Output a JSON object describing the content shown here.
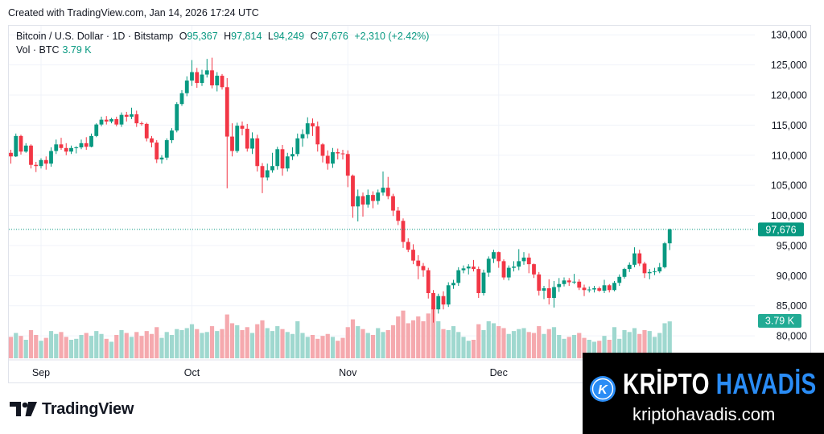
{
  "caption": "Created with TradingView.com, Jan 14, 2026 17:24 UTC",
  "legend": {
    "symbol": "Bitcoin / U.S. Dollar · 1D · Bitstamp",
    "o_label": "O",
    "o_value": "95,367",
    "h_label": "H",
    "h_value": "97,814",
    "l_label": "L",
    "l_value": "94,249",
    "c_label": "C",
    "c_value": "97,676",
    "change": "+2,310 (+2.42%)",
    "vol_label": "Vol · BTC",
    "vol_value": "3.79 K"
  },
  "brand": {
    "logo_text": "TradingView"
  },
  "watermark": {
    "title_part1": "KRİPTO",
    "title_part2": "HAVADİS",
    "url": "kriptohavadis.com",
    "badge_letter": "K",
    "color_blue": "#2a8cf5"
  },
  "colors": {
    "up": "#089981",
    "down": "#f23645",
    "vol_up": "#9fd8cf",
    "vol_down": "#f5a9ae"
  },
  "chart_data": {
    "type": "candlestick",
    "price_axis": {
      "ticks": [
        80000,
        85000,
        90000,
        95000,
        100000,
        105000,
        110000,
        115000,
        120000,
        125000,
        130000
      ],
      "tick_labels": [
        "80,000",
        "85,000",
        "90,000",
        "95,000",
        "100,000",
        "105,000",
        "110,000",
        "115,000",
        "120,000",
        "125,000",
        "130,000"
      ],
      "range": [
        76000,
        131500
      ]
    },
    "x_axis": {
      "month_labels": [
        {
          "label": "Sep",
          "index": 6
        },
        {
          "label": "Oct",
          "index": 36
        },
        {
          "label": "Nov",
          "index": 67
        },
        {
          "label": "Dec",
          "index": 97
        }
      ]
    },
    "last_price": {
      "value": 97676,
      "label": "97,676"
    },
    "last_volume": {
      "label": "3.79 K"
    },
    "start_date": "2025-08-26",
    "candles": [
      [
        110400,
        110900,
        108600,
        109800,
        2.2
      ],
      [
        109800,
        113600,
        109700,
        113200,
        2.6
      ],
      [
        113200,
        113400,
        110100,
        110600,
        2.3
      ],
      [
        110600,
        112000,
        110400,
        111600,
        1.9
      ],
      [
        111600,
        111800,
        107800,
        108400,
        2.9
      ],
      [
        108400,
        108900,
        107200,
        108200,
        2.4
      ],
      [
        108200,
        109500,
        107800,
        109200,
        1.8
      ],
      [
        109200,
        109800,
        107600,
        108600,
        2.1
      ],
      [
        108600,
        111300,
        108100,
        110700,
        2.8
      ],
      [
        110700,
        112600,
        110200,
        111800,
        2.5
      ],
      [
        111800,
        112900,
        110900,
        111200,
        2.7
      ],
      [
        111200,
        112000,
        110000,
        110600,
        2.2
      ],
      [
        110600,
        111600,
        110200,
        111200,
        1.9
      ],
      [
        111200,
        111500,
        110300,
        111300,
        2.0
      ],
      [
        111300,
        112600,
        111000,
        112000,
        2.4
      ],
      [
        112000,
        113000,
        110900,
        111400,
        2.6
      ],
      [
        111400,
        113600,
        111300,
        113200,
        2.3
      ],
      [
        113200,
        115300,
        113000,
        115100,
        2.8
      ],
      [
        115100,
        116400,
        114800,
        115900,
        2.5
      ],
      [
        115900,
        116500,
        115100,
        115600,
        2.0
      ],
      [
        115600,
        116200,
        115300,
        116000,
        1.7
      ],
      [
        116000,
        116400,
        114800,
        115100,
        2.4
      ],
      [
        115100,
        117100,
        114700,
        116700,
        2.9
      ],
      [
        116700,
        117200,
        115600,
        116400,
        2.6
      ],
      [
        116400,
        117900,
        116000,
        116800,
        2.2
      ],
      [
        116800,
        117400,
        114700,
        115300,
        2.7
      ],
      [
        115300,
        115600,
        114900,
        115200,
        2.3
      ],
      [
        115200,
        115400,
        112300,
        112800,
        2.8
      ],
      [
        112800,
        113200,
        111300,
        112100,
        2.5
      ],
      [
        112100,
        112500,
        108700,
        109300,
        3.2
      ],
      [
        109300,
        110000,
        108600,
        109600,
        2.1
      ],
      [
        109600,
        112800,
        109200,
        112500,
        2.7
      ],
      [
        112500,
        114500,
        112000,
        114100,
        2.4
      ],
      [
        114100,
        118800,
        113800,
        118500,
        3.0
      ],
      [
        118500,
        120800,
        118200,
        120300,
        2.9
      ],
      [
        120300,
        123100,
        119800,
        122400,
        3.1
      ],
      [
        122400,
        125800,
        121500,
        123800,
        3.5
      ],
      [
        123800,
        124500,
        121200,
        122000,
        3.0
      ],
      [
        122000,
        124200,
        121500,
        123400,
        2.6
      ],
      [
        123400,
        126000,
        122900,
        124100,
        2.7
      ],
      [
        124100,
        126200,
        121100,
        121600,
        3.3
      ],
      [
        121600,
        123800,
        120600,
        123200,
        2.8
      ],
      [
        123200,
        123500,
        120900,
        121300,
        3.0
      ],
      [
        121300,
        122800,
        104500,
        113100,
        4.5
      ],
      [
        113100,
        115300,
        109800,
        110700,
        3.6
      ],
      [
        110700,
        115400,
        110400,
        114900,
        3.4
      ],
      [
        114900,
        115600,
        113300,
        114400,
        2.9
      ],
      [
        114400,
        115200,
        110600,
        111100,
        3.2
      ],
      [
        111100,
        113800,
        110200,
        112800,
        2.6
      ],
      [
        112800,
        113400,
        107300,
        108200,
        3.5
      ],
      [
        108200,
        108700,
        103700,
        106300,
        3.9
      ],
      [
        106300,
        108600,
        105800,
        107500,
        3.1
      ],
      [
        107500,
        110400,
        107100,
        108200,
        2.8
      ],
      [
        108200,
        111400,
        107600,
        111000,
        3.3
      ],
      [
        111000,
        111700,
        106600,
        107800,
        3.0
      ],
      [
        107800,
        110400,
        107300,
        109800,
        2.7
      ],
      [
        109800,
        111300,
        109200,
        110200,
        2.5
      ],
      [
        110200,
        113600,
        109800,
        112800,
        3.8
      ],
      [
        112800,
        114300,
        111400,
        113500,
        2.6
      ],
      [
        113500,
        116300,
        112800,
        115300,
        2.2
      ],
      [
        115300,
        116100,
        113200,
        114800,
        2.4
      ],
      [
        114800,
        115600,
        110600,
        111800,
        2.0
      ],
      [
        111800,
        112000,
        108800,
        109900,
        2.3
      ],
      [
        109900,
        110800,
        107600,
        108600,
        2.5
      ],
      [
        108600,
        111200,
        107900,
        110500,
        2.2
      ],
      [
        110500,
        111100,
        109300,
        110300,
        1.8
      ],
      [
        110300,
        110900,
        109300,
        110200,
        2.1
      ],
      [
        110200,
        110800,
        104700,
        106600,
        3.2
      ],
      [
        106600,
        106800,
        99600,
        101500,
        4.0
      ],
      [
        101500,
        104300,
        99000,
        103200,
        3.3
      ],
      [
        103200,
        103800,
        99800,
        101800,
        3.0
      ],
      [
        101800,
        104300,
        101300,
        103400,
        2.6
      ],
      [
        103400,
        104000,
        101200,
        102400,
        2.4
      ],
      [
        102400,
        104300,
        101800,
        103800,
        3.1
      ],
      [
        103800,
        107300,
        103300,
        104600,
        2.7
      ],
      [
        104600,
        106400,
        102700,
        103200,
        2.9
      ],
      [
        103200,
        103600,
        99900,
        100800,
        3.4
      ],
      [
        100800,
        101400,
        98400,
        99100,
        4.3
      ],
      [
        99100,
        99500,
        94600,
        95600,
        4.9
      ],
      [
        95600,
        96200,
        93900,
        94300,
        3.6
      ],
      [
        94300,
        95200,
        91900,
        92500,
        3.9
      ],
      [
        92500,
        93400,
        89400,
        91600,
        4.3
      ],
      [
        91600,
        92100,
        89800,
        90900,
        3.8
      ],
      [
        90900,
        91300,
        86200,
        87100,
        4.6
      ],
      [
        87100,
        87600,
        82200,
        84400,
        5.4
      ],
      [
        84400,
        87000,
        83700,
        86600,
        3.8
      ],
      [
        86600,
        87400,
        84400,
        85200,
        3.0
      ],
      [
        85200,
        88900,
        84800,
        88400,
        2.9
      ],
      [
        88400,
        89300,
        87800,
        88800,
        3.3
      ],
      [
        88800,
        91400,
        88300,
        90900,
        2.7
      ],
      [
        90900,
        91700,
        90400,
        91200,
        2.2
      ],
      [
        91200,
        91900,
        90200,
        91500,
        1.8
      ],
      [
        91500,
        92600,
        90700,
        91100,
        1.9
      ],
      [
        91100,
        91500,
        86300,
        87100,
        3.5
      ],
      [
        87100,
        91000,
        86700,
        90500,
        2.9
      ],
      [
        90500,
        93200,
        89800,
        92800,
        3.8
      ],
      [
        92800,
        94300,
        92100,
        93900,
        3.6
      ],
      [
        93900,
        94000,
        91300,
        92400,
        3.3
      ],
      [
        92400,
        92700,
        89300,
        89700,
        3.1
      ],
      [
        89700,
        91700,
        89200,
        91300,
        2.5
      ],
      [
        91300,
        92400,
        90700,
        91500,
        2.8
      ],
      [
        91500,
        94400,
        90900,
        92400,
        3.0
      ],
      [
        92400,
        93900,
        91800,
        93000,
        3.1
      ],
      [
        93000,
        93700,
        90400,
        91900,
        2.7
      ],
      [
        91900,
        92000,
        89600,
        90200,
        2.6
      ],
      [
        90200,
        90600,
        86700,
        87500,
        3.3
      ],
      [
        87500,
        88300,
        86100,
        87900,
        2.5
      ],
      [
        87900,
        89400,
        85200,
        86300,
        3.0
      ],
      [
        86300,
        89100,
        84700,
        88100,
        3.2
      ],
      [
        88100,
        89600,
        87300,
        88600,
        2.4
      ],
      [
        88600,
        89700,
        88200,
        89200,
        2.0
      ],
      [
        89200,
        89600,
        88300,
        88900,
        2.2
      ],
      [
        88900,
        90300,
        88600,
        89000,
        2.4
      ],
      [
        89000,
        89400,
        87600,
        88000,
        2.6
      ],
      [
        88000,
        88500,
        86600,
        87600,
        2.1
      ],
      [
        87600,
        88200,
        87200,
        87700,
        1.9
      ],
      [
        87700,
        88300,
        87200,
        87900,
        1.7
      ],
      [
        87900,
        88200,
        87300,
        87500,
        1.8
      ],
      [
        87500,
        89300,
        87100,
        88400,
        2.3
      ],
      [
        88400,
        88600,
        87200,
        87600,
        1.9
      ],
      [
        87600,
        89100,
        87400,
        88800,
        3.2
      ],
      [
        88800,
        90200,
        88300,
        89800,
        2.0
      ],
      [
        89800,
        91300,
        89500,
        91100,
        2.9
      ],
      [
        91100,
        92200,
        90600,
        91800,
        2.7
      ],
      [
        91800,
        94700,
        91400,
        93700,
        3.1
      ],
      [
        93700,
        94300,
        91600,
        92000,
        2.5
      ],
      [
        92000,
        92300,
        89600,
        90400,
        2.9
      ],
      [
        90400,
        91100,
        89400,
        90600,
        2.8
      ],
      [
        90600,
        91300,
        90100,
        90700,
        2.2
      ],
      [
        90700,
        92100,
        90400,
        91400,
        2.6
      ],
      [
        91400,
        95600,
        91200,
        95367,
        3.6
      ],
      [
        95367,
        97814,
        94249,
        97676,
        3.79
      ]
    ]
  }
}
